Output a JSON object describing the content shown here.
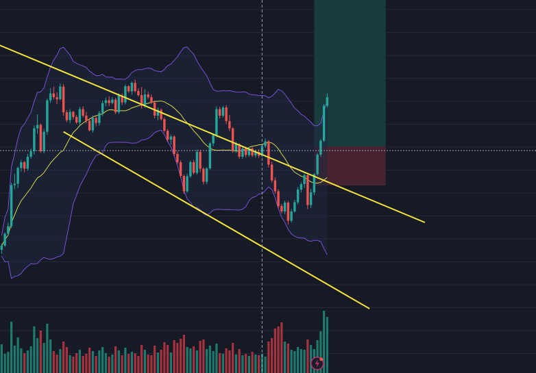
{
  "colors": {
    "background": "#161a25",
    "grid": "#232838",
    "bullish": "#26a69a",
    "bearish": "#ef5350",
    "volume_bullish": "#1f7a6e",
    "volume_bearish": "#a7323f",
    "trendline": "#f6e43c",
    "bollinger_band": "#7b4fd6",
    "bollinger_fill": "#1f2840",
    "basis_line": "#d9d94a",
    "crosshair": "#9aa0b0",
    "target_zone": "#183d3d",
    "stop_zone": "#4a2330",
    "alert_icon": "#c4306f"
  },
  "icons": {
    "alert": "lightning-alert-icon"
  },
  "chart_data": {
    "type": "candlestick",
    "y_range": [
      0,
      100
    ],
    "x_range": [
      0,
      130
    ],
    "last_index": 94,
    "grid": true,
    "candles": [
      [
        0,
        27.0,
        28.8,
        25.8,
        28.2
      ],
      [
        1,
        28.2,
        32.1,
        27.9,
        31.7
      ],
      [
        2,
        31.7,
        34.9,
        31.0,
        33.9
      ],
      [
        3,
        33.9,
        46.6,
        33.3,
        45.9
      ],
      [
        4,
        45.9,
        49.2,
        44.7,
        46.3
      ],
      [
        5,
        46.3,
        51.3,
        45.0,
        50.9
      ],
      [
        6,
        50.9,
        53.3,
        49.9,
        52.6
      ],
      [
        7,
        52.6,
        53.0,
        49.7,
        50.7
      ],
      [
        8,
        50.7,
        55.1,
        50.1,
        54.2
      ],
      [
        9,
        54.2,
        56.6,
        53.6,
        55.8
      ],
      [
        10,
        55.8,
        63.3,
        54.8,
        62.5
      ],
      [
        11,
        62.5,
        66.6,
        60.9,
        63.5
      ],
      [
        12,
        63.5,
        63.9,
        55.3,
        55.8
      ],
      [
        13,
        55.8,
        62.3,
        55.1,
        61.5
      ],
      [
        14,
        61.5,
        71.2,
        60.6,
        70.7
      ],
      [
        15,
        70.7,
        74.2,
        69.9,
        72.7
      ],
      [
        16,
        72.7,
        74.7,
        70.9,
        71.6
      ],
      [
        17,
        71.6,
        73.0,
        69.6,
        71.0
      ],
      [
        18,
        71.0,
        75.6,
        70.7,
        74.7
      ],
      [
        19,
        74.7,
        75.4,
        66.2,
        67.2
      ],
      [
        20,
        67.2,
        67.8,
        64.3,
        64.9
      ],
      [
        21,
        64.9,
        68.1,
        64.0,
        67.3
      ],
      [
        22,
        67.3,
        67.6,
        65.1,
        65.8
      ],
      [
        23,
        65.8,
        66.4,
        63.8,
        64.2
      ],
      [
        24,
        64.2,
        68.8,
        63.5,
        68.1
      ],
      [
        25,
        68.1,
        68.9,
        65.7,
        66.2
      ],
      [
        26,
        66.2,
        67.3,
        64.0,
        64.7
      ],
      [
        27,
        64.7,
        65.5,
        61.6,
        61.9
      ],
      [
        28,
        61.9,
        66.3,
        61.2,
        65.5
      ],
      [
        29,
        65.5,
        66.0,
        63.1,
        64.1
      ],
      [
        30,
        64.1,
        67.6,
        63.3,
        67.0
      ],
      [
        31,
        67.0,
        70.6,
        66.1,
        69.9
      ],
      [
        32,
        69.9,
        71.5,
        68.9,
        70.7
      ],
      [
        33,
        70.7,
        71.8,
        69.0,
        69.9
      ],
      [
        34,
        69.9,
        71.6,
        69.5,
        70.9
      ],
      [
        35,
        70.9,
        71.4,
        66.7,
        67.2
      ],
      [
        36,
        67.2,
        72.7,
        66.7,
        72.1
      ],
      [
        37,
        72.1,
        72.7,
        69.3,
        70.1
      ],
      [
        38,
        70.1,
        75.3,
        69.5,
        74.8
      ],
      [
        39,
        74.8,
        75.1,
        72.9,
        73.3
      ],
      [
        40,
        73.3,
        76.2,
        72.3,
        75.8
      ],
      [
        41,
        75.8,
        76.8,
        72.9,
        73.4
      ],
      [
        42,
        73.4,
        74.2,
        71.8,
        72.2
      ],
      [
        43,
        72.2,
        74.6,
        68.3,
        69.1
      ],
      [
        44,
        69.1,
        73.9,
        68.5,
        72.4
      ],
      [
        45,
        72.4,
        73.2,
        71.1,
        71.6
      ],
      [
        46,
        71.6,
        72.4,
        69.7,
        70.0
      ],
      [
        47,
        70.0,
        70.7,
        65.4,
        66.2
      ],
      [
        48,
        66.2,
        68.6,
        64.9,
        67.9
      ],
      [
        49,
        67.9,
        68.3,
        64.7,
        65.2
      ],
      [
        50,
        65.2,
        65.7,
        61.3,
        61.8
      ],
      [
        51,
        61.8,
        62.3,
        58.5,
        59.2
      ],
      [
        52,
        59.2,
        60.7,
        57.7,
        60.1
      ],
      [
        53,
        60.1,
        60.5,
        54.4,
        55.0
      ],
      [
        54,
        55.0,
        55.9,
        52.1,
        52.6
      ],
      [
        55,
        52.6,
        53.1,
        48.0,
        48.6
      ],
      [
        56,
        48.6,
        49.0,
        43.4,
        44.1
      ],
      [
        57,
        44.1,
        49.3,
        43.7,
        48.5
      ],
      [
        58,
        48.5,
        53.1,
        48.0,
        52.6
      ],
      [
        59,
        52.6,
        53.3,
        49.0,
        49.5
      ],
      [
        60,
        49.5,
        56.3,
        49.0,
        55.6
      ],
      [
        61,
        55.6,
        56.3,
        49.7,
        50.7
      ],
      [
        62,
        50.7,
        51.1,
        46.1,
        46.9
      ],
      [
        63,
        46.9,
        51.1,
        46.2,
        50.8
      ],
      [
        64,
        50.8,
        58.5,
        50.4,
        58.1
      ],
      [
        65,
        58.1,
        61.0,
        57.3,
        60.6
      ],
      [
        66,
        60.6,
        68.9,
        59.9,
        68.1
      ],
      [
        67,
        68.1,
        68.8,
        65.4,
        66.2
      ],
      [
        68,
        66.2,
        69.1,
        65.7,
        68.6
      ],
      [
        69,
        68.6,
        69.3,
        63.8,
        64.6
      ],
      [
        70,
        64.6,
        66.4,
        61.7,
        62.5
      ],
      [
        71,
        62.5,
        62.8,
        55.4,
        56.0
      ],
      [
        72,
        56.0,
        58.6,
        55.3,
        57.9
      ],
      [
        73,
        57.9,
        58.1,
        53.6,
        54.2
      ],
      [
        74,
        54.2,
        57.2,
        53.6,
        56.6
      ],
      [
        75,
        56.6,
        57.2,
        54.0,
        54.7
      ],
      [
        76,
        54.7,
        57.1,
        54.1,
        56.6
      ],
      [
        77,
        56.6,
        57.0,
        54.1,
        54.6
      ],
      [
        78,
        54.6,
        56.3,
        53.9,
        55.6
      ],
      [
        79,
        55.6,
        56.4,
        53.9,
        54.5
      ],
      [
        80,
        54.5,
        57.8,
        54.1,
        57.3
      ],
      [
        81,
        57.3,
        59.5,
        56.8,
        58.7
      ],
      [
        82,
        58.7,
        59.1,
        51.1,
        51.9
      ],
      [
        83,
        51.9,
        52.8,
        46.7,
        47.3
      ],
      [
        84,
        47.3,
        48.2,
        43.4,
        44.1
      ],
      [
        85,
        44.1,
        44.7,
        39.1,
        39.8
      ],
      [
        86,
        39.8,
        40.4,
        37.7,
        38.2
      ],
      [
        87,
        38.2,
        41.4,
        37.4,
        40.8
      ],
      [
        88,
        40.8,
        41.3,
        34.4,
        35.5
      ],
      [
        89,
        35.5,
        38.9,
        35.0,
        38.2
      ],
      [
        90,
        38.2,
        41.6,
        37.8,
        40.9
      ],
      [
        91,
        40.9,
        45.3,
        40.3,
        44.6
      ],
      [
        92,
        44.6,
        46.8,
        43.8,
        46.2
      ],
      [
        93,
        46.2,
        49.3,
        45.1,
        48.8
      ],
      [
        94,
        48.8,
        49.5,
        38.9,
        40.1
      ],
      [
        95,
        40.1,
        44.8,
        39.2,
        43.8
      ],
      [
        96,
        43.8,
        49.4,
        43.0,
        49.1
      ],
      [
        97,
        49.1,
        55.3,
        48.7,
        54.8
      ],
      [
        98,
        54.8,
        59.3,
        54.2,
        58.9
      ],
      [
        99,
        58.9,
        69.6,
        58.5,
        69.1
      ],
      [
        100,
        69.1,
        72.7,
        68.6,
        71.6
      ]
    ],
    "volumes": [
      4.2,
      2.8,
      3.1,
      7.5,
      4.0,
      5.2,
      3.6,
      2.9,
      3.3,
      3.9,
      6.8,
      5.1,
      6.2,
      4.4,
      7.2,
      4.9,
      3.2,
      2.7,
      3.5,
      4.6,
      3.8,
      2.6,
      2.4,
      2.9,
      3.4,
      2.5,
      2.8,
      3.7,
      3.2,
      2.5,
      3.3,
      3.8,
      2.9,
      2.4,
      2.7,
      3.9,
      3.3,
      2.6,
      3.7,
      2.8,
      3.1,
      2.9,
      2.5,
      4.1,
      3.4,
      2.7,
      2.6,
      4.0,
      3.0,
      3.4,
      4.5,
      4.1,
      3.0,
      4.8,
      4.4,
      5.0,
      5.6,
      3.8,
      3.6,
      3.9,
      3.3,
      4.7,
      4.9,
      3.5,
      4.0,
      3.2,
      4.3,
      2.9,
      2.8,
      3.6,
      3.3,
      4.4,
      2.7,
      3.5,
      2.6,
      2.8,
      2.5,
      3.1,
      2.7,
      2.6,
      2.8,
      2.4,
      4.6,
      5.1,
      6.5,
      6.8,
      7.4,
      4.6,
      4.3,
      3.4,
      3.2,
      3.8,
      3.5,
      3.4,
      4.9,
      4.1,
      3.5,
      4.8,
      6.1,
      9.1,
      8.2
    ],
    "volume_max": 10,
    "indicators": {
      "bollinger_period": 20,
      "bollinger_stddev": 2
    },
    "trend_channel": {
      "upper": [
        [
          -10,
          90.5
        ],
        [
          130,
          35.0
        ]
      ],
      "lower": [
        [
          19,
          61.5
        ],
        [
          113,
          9.8
        ]
      ]
    },
    "position": {
      "start_index": 96,
      "end_index": 118,
      "entry": 57.2,
      "target": 100,
      "stop": 45.8
    },
    "crosshair": {
      "x_index": 80,
      "y_value": 56.0
    }
  }
}
